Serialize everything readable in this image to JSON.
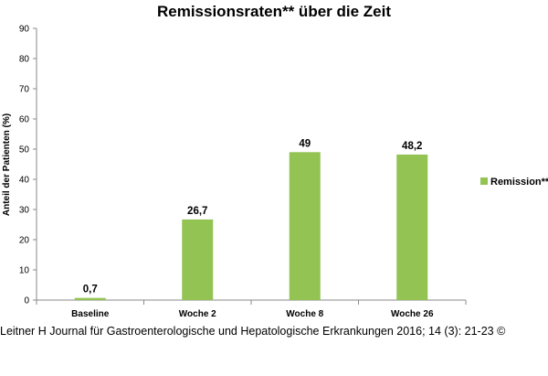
{
  "chart_data": {
    "type": "bar",
    "title": "Remissionsraten** über die Zeit",
    "xlabel": "",
    "ylabel": "Anteil der Patienten (%)",
    "categories": [
      "Baseline",
      "Woche 2",
      "Woche 8",
      "Woche 26"
    ],
    "series": [
      {
        "name": "Remission**",
        "values": [
          0.7,
          26.7,
          49,
          48.2
        ],
        "labels": [
          "0,7",
          "26,7",
          "49",
          "48,2"
        ]
      }
    ],
    "ylim": [
      0,
      90
    ],
    "yticks": [
      0,
      10,
      20,
      30,
      40,
      50,
      60,
      70,
      80,
      90
    ],
    "grid": false,
    "legend": "right",
    "bar_color": "#92c353"
  },
  "caption": "Leitner H Journal für Gastroenterologische und Hepatologische Erkrankungen 2016; 14 (3): 21-23 ©"
}
